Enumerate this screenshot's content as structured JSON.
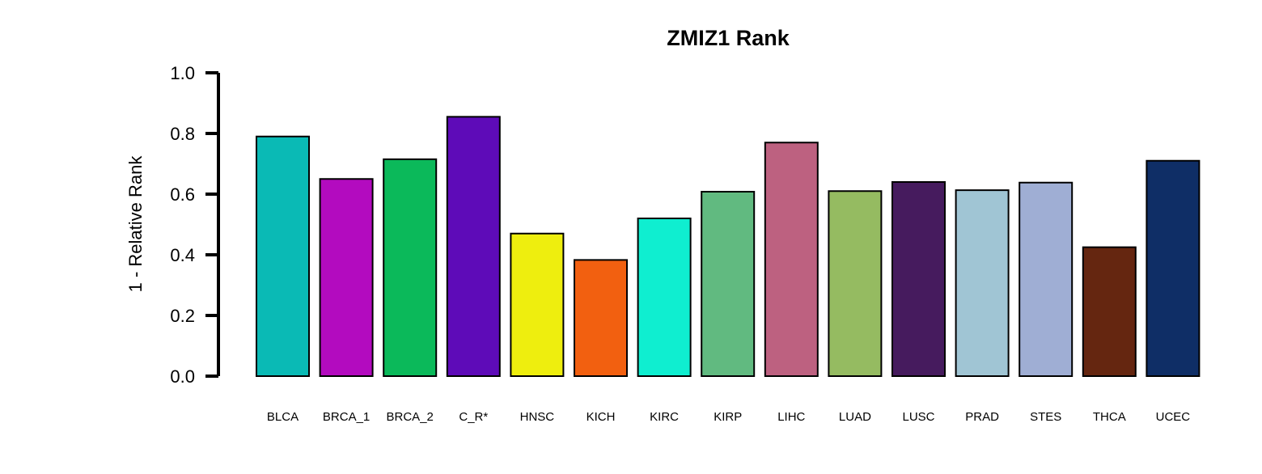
{
  "chart_data": {
    "type": "bar",
    "title": "ZMIZ1 Rank",
    "xlabel": "",
    "ylabel": "1 - Relative Rank",
    "ylim": [
      0,
      1
    ],
    "yticks": [
      "0.0",
      "0.2",
      "0.4",
      "0.6",
      "0.8",
      "1.0"
    ],
    "ytick_values": [
      0,
      0.2,
      0.4,
      0.6,
      0.8,
      1.0
    ],
    "grid": false,
    "categories": [
      "BLCA",
      "BRCA_1",
      "BRCA_2",
      "C_R*",
      "HNSC",
      "KICH",
      "KIRC",
      "KIRP",
      "LIHC",
      "LUAD",
      "LUSC",
      "PRAD",
      "STES",
      "THCA",
      "UCEC"
    ],
    "values": [
      0.79,
      0.65,
      0.715,
      0.855,
      0.47,
      0.383,
      0.52,
      0.608,
      0.77,
      0.61,
      0.64,
      0.613,
      0.638,
      0.425,
      0.71
    ],
    "colors": [
      "#0ABAB5",
      "#B30BBF",
      "#0BB95A",
      "#5E0BB8",
      "#EEEE0E",
      "#F26010",
      "#0FEED0",
      "#61BA80",
      "#BD6180",
      "#95BB61",
      "#461B5E",
      "#A0C5D4",
      "#9FAED4",
      "#652610",
      "#0F2E66"
    ]
  }
}
